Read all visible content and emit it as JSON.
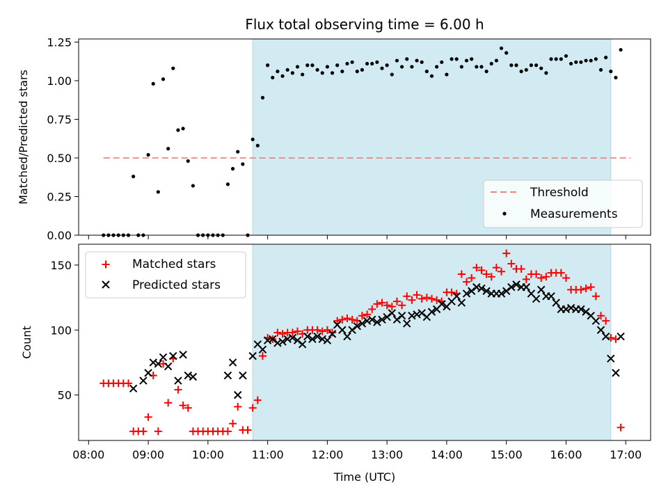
{
  "chart_data": [
    {
      "type": "scatter",
      "title": "Flux total observing time = 6.00 h",
      "xlabel": "",
      "ylabel": "Matched/Predicted stars",
      "xlim": [
        "07:50",
        "17:25"
      ],
      "ylim": [
        0,
        1.27
      ],
      "yticks": [
        "0.00",
        "0.25",
        "0.50",
        "0.75",
        "1.00",
        "1.25"
      ],
      "shaded_span": [
        "10:45",
        "16:45"
      ],
      "shaded_color": "#add8e6",
      "threshold": {
        "name": "Threshold",
        "value": 0.5,
        "x_range": [
          "08:15",
          "17:05"
        ],
        "color": "#f08080"
      },
      "legend": {
        "position": "lower right",
        "entries": [
          "Threshold",
          "Measurements"
        ]
      },
      "series": [
        {
          "name": "Measurements",
          "marker": "dot",
          "color": "#000000",
          "x": [
            "08:15",
            "08:20",
            "08:25",
            "08:30",
            "08:35",
            "08:40",
            "08:45",
            "08:50",
            "08:55",
            "09:00",
            "09:05",
            "09:10",
            "09:15",
            "09:20",
            "09:25",
            "09:30",
            "09:35",
            "09:40",
            "09:45",
            "09:50",
            "09:55",
            "10:00",
            "10:05",
            "10:10",
            "10:15",
            "10:20",
            "10:25",
            "10:30",
            "10:35",
            "10:40",
            "10:45",
            "10:50",
            "10:55",
            "11:00",
            "11:05",
            "11:10",
            "11:15",
            "11:20",
            "11:25",
            "11:30",
            "11:35",
            "11:40",
            "11:45",
            "11:50",
            "11:55",
            "12:00",
            "12:05",
            "12:10",
            "12:15",
            "12:20",
            "12:25",
            "12:30",
            "12:35",
            "12:40",
            "12:45",
            "12:50",
            "12:55",
            "13:00",
            "13:05",
            "13:10",
            "13:15",
            "13:20",
            "13:25",
            "13:30",
            "13:35",
            "13:40",
            "13:45",
            "13:50",
            "13:55",
            "14:00",
            "14:05",
            "14:10",
            "14:15",
            "14:20",
            "14:25",
            "14:30",
            "14:35",
            "14:40",
            "14:45",
            "14:50",
            "14:55",
            "15:00",
            "15:05",
            "15:10",
            "15:15",
            "15:20",
            "15:25",
            "15:30",
            "15:35",
            "15:40",
            "15:45",
            "15:50",
            "15:55",
            "16:00",
            "16:05",
            "16:10",
            "16:15",
            "16:20",
            "16:25",
            "16:30",
            "16:35",
            "16:40",
            "16:45",
            "16:50",
            "16:55"
          ],
          "y": [
            0,
            0,
            0,
            0,
            0,
            0,
            0.38,
            0,
            0,
            0.52,
            0.98,
            0.28,
            1.01,
            0.56,
            1.08,
            0.68,
            0.69,
            0.48,
            0.32,
            0,
            0,
            0,
            0,
            0,
            0,
            0.33,
            0.43,
            0.54,
            0.46,
            0,
            0.62,
            0.58,
            0.89,
            1.1,
            1.02,
            1.06,
            1.03,
            1.07,
            1.05,
            1.09,
            1.04,
            1.1,
            1.1,
            1.07,
            1.05,
            1.09,
            1.05,
            1.1,
            1.06,
            1.11,
            1.12,
            1.06,
            1.07,
            1.11,
            1.11,
            1.12,
            1.08,
            1.1,
            1.04,
            1.13,
            1.09,
            1.14,
            1.09,
            1.13,
            1.12,
            1.06,
            1.03,
            1.09,
            1.12,
            1.04,
            1.14,
            1.14,
            1.09,
            1.13,
            1.14,
            1.09,
            1.09,
            1.06,
            1.11,
            1.13,
            1.21,
            1.18,
            1.1,
            1.1,
            1.06,
            1.07,
            1.1,
            1.1,
            1.08,
            1.05,
            1.14,
            1.14,
            1.14,
            1.16,
            1.11,
            1.12,
            1.12,
            1.13,
            1.13,
            1.14,
            1.07,
            1.15,
            1.06,
            1.02,
            1.2
          ]
        }
      ]
    },
    {
      "type": "scatter",
      "title": "",
      "xlabel": "Time (UTC)",
      "ylabel": "Count",
      "xlim": [
        "07:50",
        "17:25"
      ],
      "ylim": [
        15,
        166
      ],
      "xticks": [
        "08:00",
        "09:00",
        "10:00",
        "11:00",
        "12:00",
        "13:00",
        "14:00",
        "15:00",
        "16:00",
        "17:00"
      ],
      "yticks": [
        "50",
        "100",
        "150"
      ],
      "shaded_span": [
        "10:45",
        "16:45"
      ],
      "shaded_color": "#add8e6",
      "legend": {
        "position": "upper left",
        "entries": [
          "Matched stars",
          "Predicted stars"
        ]
      },
      "series": [
        {
          "name": "Matched stars",
          "marker": "plus",
          "color": "#ff0000",
          "x": [
            "08:15",
            "08:20",
            "08:25",
            "08:30",
            "08:35",
            "08:40",
            "08:45",
            "08:50",
            "08:55",
            "09:00",
            "09:05",
            "09:10",
            "09:15",
            "09:20",
            "09:25",
            "09:30",
            "09:35",
            "09:40",
            "09:45",
            "09:50",
            "09:55",
            "10:00",
            "10:05",
            "10:10",
            "10:15",
            "10:20",
            "10:25",
            "10:30",
            "10:35",
            "10:40",
            "10:45",
            "10:50",
            "10:55",
            "11:00",
            "11:05",
            "11:10",
            "11:15",
            "11:20",
            "11:25",
            "11:30",
            "11:35",
            "11:40",
            "11:45",
            "11:50",
            "11:55",
            "12:00",
            "12:05",
            "12:10",
            "12:15",
            "12:20",
            "12:25",
            "12:30",
            "12:35",
            "12:40",
            "12:45",
            "12:50",
            "12:55",
            "13:00",
            "13:05",
            "13:10",
            "13:15",
            "13:20",
            "13:25",
            "13:30",
            "13:35",
            "13:40",
            "13:45",
            "13:50",
            "13:55",
            "14:00",
            "14:05",
            "14:10",
            "14:15",
            "14:20",
            "14:25",
            "14:30",
            "14:35",
            "14:40",
            "14:45",
            "14:50",
            "14:55",
            "15:00",
            "15:05",
            "15:10",
            "15:15",
            "15:20",
            "15:25",
            "15:30",
            "15:35",
            "15:40",
            "15:45",
            "15:50",
            "15:55",
            "16:00",
            "16:05",
            "16:10",
            "16:15",
            "16:20",
            "16:25",
            "16:30",
            "16:35",
            "16:40",
            "16:45",
            "16:50",
            "16:55"
          ],
          "y": [
            59,
            59,
            59,
            59,
            59,
            59,
            22,
            22,
            22,
            33,
            65,
            22,
            74,
            44,
            78,
            54,
            42,
            40,
            22,
            22,
            22,
            22,
            22,
            22,
            22,
            22,
            28,
            41,
            23,
            23,
            40,
            46,
            80,
            94,
            93,
            98,
            97,
            98,
            98,
            99,
            97,
            100,
            100,
            100,
            99,
            100,
            98,
            107,
            108,
            109,
            108,
            107,
            111,
            112,
            116,
            120,
            121,
            119,
            118,
            122,
            119,
            126,
            123,
            127,
            124,
            125,
            124,
            123,
            122,
            129,
            129,
            128,
            143,
            137,
            140,
            148,
            146,
            143,
            141,
            148,
            145,
            159,
            151,
            147,
            147,
            139,
            143,
            143,
            140,
            141,
            144,
            144,
            144,
            140,
            131,
            131,
            131,
            132,
            133,
            126,
            111,
            107,
            94,
            93,
            25
          ]
        },
        {
          "name": "Predicted stars",
          "marker": "x",
          "color": "#000000",
          "x": [
            "08:45",
            "08:55",
            "09:00",
            "09:05",
            "09:10",
            "09:15",
            "09:20",
            "09:25",
            "09:30",
            "09:35",
            "09:40",
            "09:45",
            "10:20",
            "10:25",
            "10:30",
            "10:35",
            "10:45",
            "10:50",
            "10:55",
            "11:00",
            "11:05",
            "11:10",
            "11:15",
            "11:20",
            "11:25",
            "11:30",
            "11:35",
            "11:40",
            "11:45",
            "11:50",
            "11:55",
            "12:00",
            "12:05",
            "12:10",
            "12:15",
            "12:20",
            "12:25",
            "12:30",
            "12:35",
            "12:40",
            "12:45",
            "12:50",
            "12:55",
            "13:00",
            "13:05",
            "13:10",
            "13:15",
            "13:20",
            "13:25",
            "13:30",
            "13:35",
            "13:40",
            "13:45",
            "13:50",
            "13:55",
            "14:00",
            "14:05",
            "14:10",
            "14:15",
            "14:20",
            "14:25",
            "14:30",
            "14:35",
            "14:40",
            "14:45",
            "14:50",
            "14:55",
            "15:00",
            "15:05",
            "15:10",
            "15:15",
            "15:20",
            "15:25",
            "15:30",
            "15:35",
            "15:40",
            "15:45",
            "15:50",
            "15:55",
            "16:00",
            "16:05",
            "16:10",
            "16:15",
            "16:20",
            "16:25",
            "16:30",
            "16:35",
            "16:40",
            "16:45",
            "16:50",
            "16:55"
          ],
          "y": [
            55,
            61,
            67,
            75,
            74,
            79,
            72,
            80,
            61,
            81,
            65,
            64,
            65,
            75,
            50,
            65,
            80,
            89,
            85,
            92,
            93,
            90,
            91,
            93,
            94,
            92,
            89,
            95,
            93,
            95,
            93,
            92,
            97,
            104,
            100,
            95,
            100,
            103,
            105,
            107,
            108,
            106,
            108,
            110,
            113,
            108,
            111,
            105,
            111,
            112,
            113,
            110,
            114,
            116,
            120,
            118,
            122,
            126,
            121,
            128,
            130,
            133,
            132,
            130,
            128,
            128,
            128,
            130,
            133,
            135,
            133,
            133,
            128,
            124,
            131,
            126,
            126,
            121,
            116,
            116,
            117,
            116,
            116,
            114,
            111,
            107,
            100,
            95,
            78,
            67,
            95
          ]
        }
      ]
    }
  ]
}
